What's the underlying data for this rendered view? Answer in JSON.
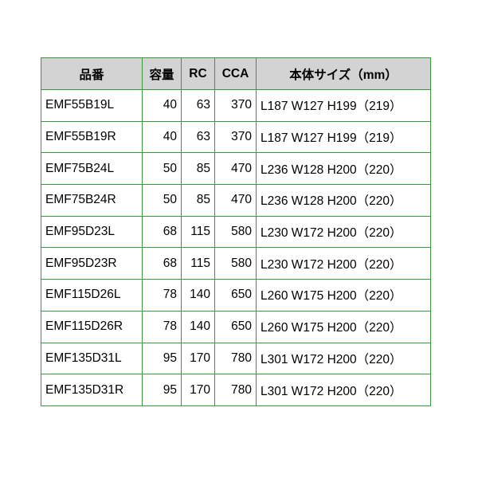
{
  "table": {
    "headers": [
      "品番",
      "容量",
      "RC",
      "CCA",
      "本体サイズ（mm）"
    ],
    "rows": [
      [
        "EMF55B19L",
        "40",
        "63",
        "370",
        "L187 W127 H199（219）"
      ],
      [
        "EMF55B19R",
        "40",
        "63",
        "370",
        "L187 W127 H199（219）"
      ],
      [
        "EMF75B24L",
        "50",
        "85",
        "470",
        "L236 W128 H200（220）"
      ],
      [
        "EMF75B24R",
        "50",
        "85",
        "470",
        "L236 W128 H200（220）"
      ],
      [
        "EMF95D23L",
        "68",
        "115",
        "580",
        "L230 W172 H200（220）"
      ],
      [
        "EMF95D23R",
        "68",
        "115",
        "580",
        "L230 W172 H200（220）"
      ],
      [
        "EMF115D26L",
        "78",
        "140",
        "650",
        "L260 W175 H200（220）"
      ],
      [
        "EMF115D26R",
        "78",
        "140",
        "650",
        "L260 W175 H200（220）"
      ],
      [
        "EMF135D31L",
        "95",
        "170",
        "780",
        "L301 W172 H200（220）"
      ],
      [
        "EMF135D31R",
        "95",
        "170",
        "780",
        "L301 W172 H200（220）"
      ]
    ],
    "border_color": "#3a9a3a",
    "header_bg": "#d3d3d3"
  }
}
